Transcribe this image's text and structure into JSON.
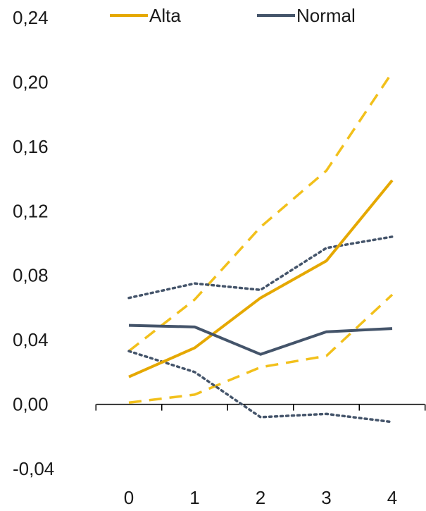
{
  "chart_data": {
    "type": "line",
    "x": [
      0,
      1,
      2,
      3,
      4
    ],
    "ylim": [
      -0.04,
      0.24
    ],
    "yticks": [
      -0.04,
      0.0,
      0.04,
      0.08,
      0.12,
      0.16,
      0.2,
      0.24
    ],
    "ytick_labels": [
      "-0,04",
      "0,00",
      "0,04",
      "0,08",
      "0,12",
      "0,16",
      "0,20",
      "0,24"
    ],
    "xtick_labels": [
      "0",
      "1",
      "2",
      "3",
      "4"
    ],
    "grid": false,
    "legend": {
      "placement": "top",
      "entries": [
        "Alta",
        "Normal"
      ]
    },
    "colors": {
      "alta": "#E5A800",
      "normal": "#44546A"
    },
    "series": [
      {
        "name": "Alta",
        "style": "solid",
        "color": "#E5A800",
        "values": [
          0.017,
          0.035,
          0.066,
          0.089,
          0.139
        ]
      },
      {
        "style": "dashed",
        "color": "#F2C01B",
        "values": [
          0.033,
          0.065,
          0.11,
          0.145,
          0.206
        ]
      },
      {
        "style": "dashed",
        "color": "#F2C01B",
        "values": [
          0.001,
          0.006,
          0.023,
          0.03,
          0.068
        ]
      },
      {
        "name": "Normal",
        "style": "solid",
        "color": "#44546A",
        "values": [
          0.049,
          0.048,
          0.031,
          0.045,
          0.047
        ]
      },
      {
        "style": "dotted",
        "color": "#44546A",
        "values": [
          0.066,
          0.075,
          0.071,
          0.097,
          0.104
        ]
      },
      {
        "style": "dotted",
        "color": "#44546A",
        "values": [
          0.033,
          0.02,
          -0.008,
          -0.006,
          -0.011
        ]
      }
    ]
  }
}
